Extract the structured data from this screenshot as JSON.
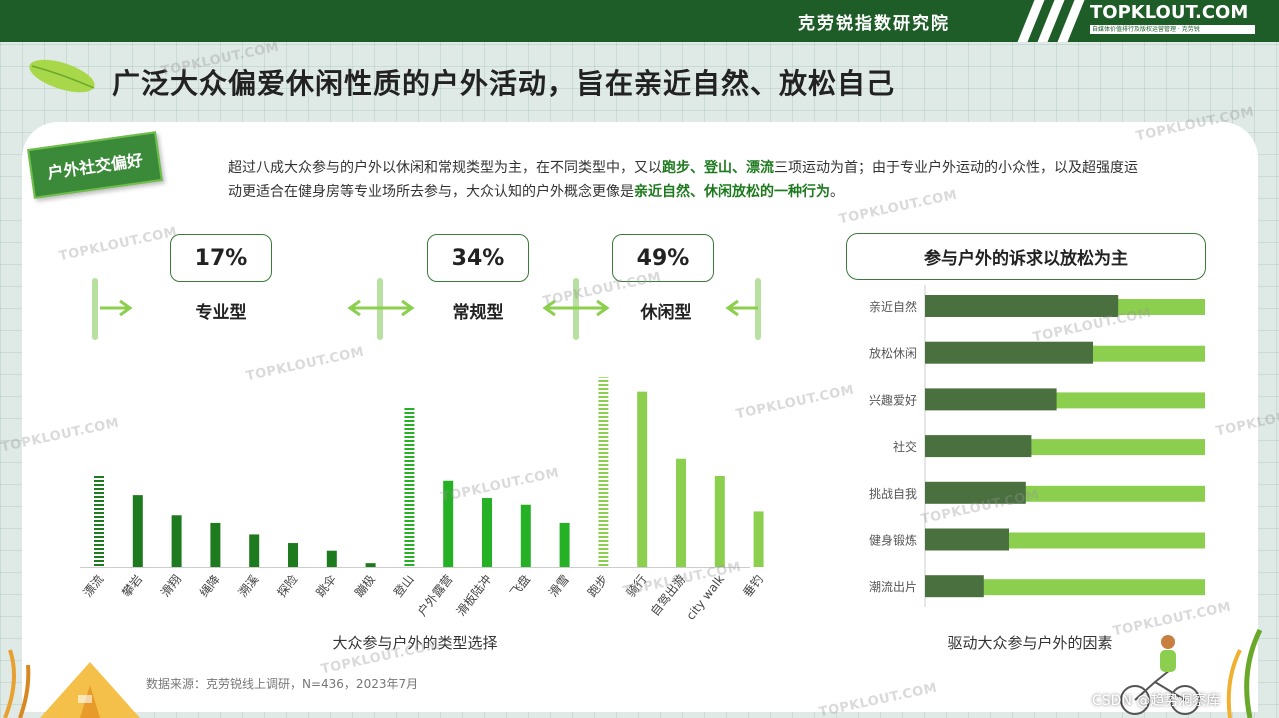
{
  "header": {
    "org": "克劳锐指数研究院",
    "logo": "TOPKLOUT.COM",
    "logo_sub": "自媒体价值排行及版权运营管理 · 克劳锐"
  },
  "title": "广泛大众偏爱休闲性质的户外活动，旨在亲近自然、放松自己",
  "tag": "户外社交偏好",
  "intro": {
    "p1": "超过八成大众参与的户外以休闲和常规类型为主，在不同类型中，又以",
    "h1": "跑步、登山、漂流",
    "p2": "三项运动为首；由于专业户外运动的小众性，以及超强度运动更适合在健身房等专业场所去参与，大众认知的户外概念更像是",
    "h2": "亲近自然、休闲放松的一种行为",
    "p3": "。"
  },
  "types": [
    {
      "pct": "17%",
      "label": "专业型"
    },
    {
      "pct": "34%",
      "label": "常规型"
    },
    {
      "pct": "49%",
      "label": "休闲型"
    }
  ],
  "colors": {
    "pro": "#1e7a1e",
    "regular": "#26b026",
    "leisure": "#8ccf4e",
    "dark_bar": "#4a7040",
    "light_bar": "#8ccf4e"
  },
  "chart_data": [
    {
      "type": "bar",
      "title": "",
      "xlabel": "大众参与户外的类型选择",
      "categories": [
        "漂流",
        "攀岩",
        "滑翔",
        "绳降",
        "溯溪",
        "探险",
        "跳伞",
        "蹦极",
        "登山",
        "户外露营",
        "滑板陆冲",
        "飞盘",
        "滑雪",
        "跑步",
        "骑行",
        "自驾出游",
        "city walk",
        "垂钓"
      ],
      "values": [
        9.5,
        7.5,
        5.4,
        4.6,
        3.4,
        2.5,
        1.7,
        0.4,
        16.8,
        9.0,
        7.2,
        6.5,
        4.6,
        19.8,
        18.3,
        11.3,
        9.5,
        5.8
      ],
      "groups": [
        "专业型",
        "专业型",
        "专业型",
        "专业型",
        "专业型",
        "专业型",
        "专业型",
        "专业型",
        "常规型",
        "常规型",
        "常规型",
        "常规型",
        "常规型",
        "休闲型",
        "休闲型",
        "休闲型",
        "休闲型",
        "休闲型"
      ],
      "highlighted": [
        "漂流",
        "登山",
        "跑步"
      ],
      "ylim": [
        0,
        22
      ]
    },
    {
      "type": "bar",
      "orientation": "horizontal",
      "title": "参与户外的诉求以放松为主",
      "xlabel": "驱动大众参与户外的因素",
      "categories": [
        "亲近自然",
        "放松休闲",
        "兴趣爱好",
        "社交",
        "挑战自我",
        "健身锻炼",
        "潮流出片"
      ],
      "values": [
        69,
        60,
        47,
        38,
        36,
        30,
        21
      ],
      "background_value": 100,
      "xlim": [
        0,
        100
      ]
    }
  ],
  "source": "数据来源：克劳锐线上调研，N=436，2023年7月",
  "watermark": "TOPKLOUT.COM",
  "csdn": "CSDN @趋势洞察库"
}
